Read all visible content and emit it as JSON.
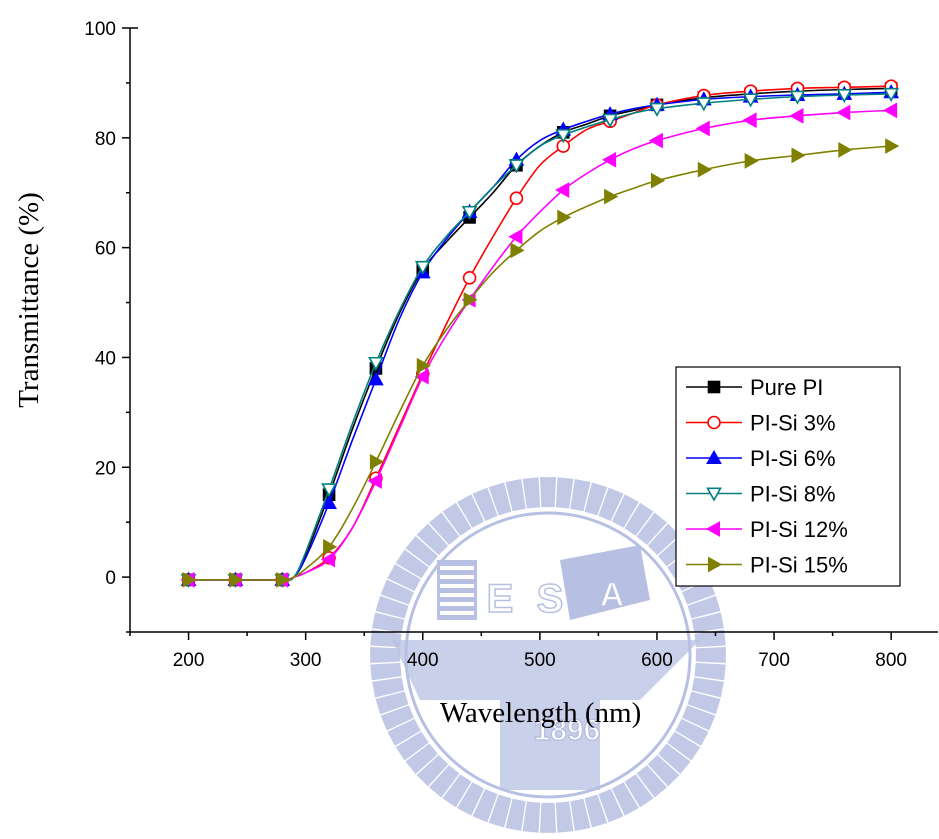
{
  "chart_data": {
    "type": "line",
    "xlabel": "Wavelength (nm)",
    "ylabel": "Transmittance (%)",
    "xlim": [
      150,
      840
    ],
    "ylim": [
      -10,
      100
    ],
    "xticks": [
      200,
      300,
      400,
      500,
      600,
      700,
      800
    ],
    "yticks": [
      0,
      20,
      40,
      60,
      80,
      100
    ],
    "grid": false,
    "legend_position": "right",
    "watermark_text": [
      "E",
      "S",
      "A",
      "1896"
    ],
    "series": [
      {
        "name": "Pure PI",
        "color": "#000000",
        "marker": "square-filled",
        "x": [
          200,
          240,
          280,
          290,
          300,
          320,
          340,
          360,
          380,
          400,
          420,
          440,
          460,
          480,
          500,
          520,
          540,
          560,
          580,
          600,
          640,
          680,
          720,
          760,
          800
        ],
        "y": [
          -0.5,
          -0.5,
          -0.5,
          0,
          4,
          15,
          27,
          38,
          48,
          56,
          61,
          65.5,
          70,
          75,
          78.5,
          81,
          82.5,
          84,
          85,
          86,
          87.3,
          88,
          88.5,
          88.8,
          89
        ]
      },
      {
        "name": "PI-Si 3%",
        "color": "#ff0000",
        "marker": "circle-open",
        "x": [
          200,
          240,
          280,
          290,
          300,
          320,
          340,
          360,
          380,
          400,
          420,
          440,
          460,
          480,
          500,
          520,
          540,
          560,
          580,
          600,
          640,
          680,
          720,
          760,
          800
        ],
        "y": [
          -0.5,
          -0.5,
          -0.5,
          0,
          0.8,
          3.5,
          9,
          18,
          27.5,
          37,
          46,
          54.5,
          62,
          69,
          75,
          78.5,
          81.5,
          83,
          84.5,
          86,
          87.7,
          88.5,
          89,
          89.2,
          89.4
        ]
      },
      {
        "name": "PI-Si 6%",
        "color": "#0000ff",
        "marker": "triangle-up-filled",
        "x": [
          200,
          240,
          280,
          290,
          300,
          320,
          340,
          360,
          380,
          400,
          420,
          440,
          460,
          480,
          500,
          520,
          540,
          560,
          580,
          600,
          640,
          680,
          720,
          760,
          800
        ],
        "y": [
          -0.5,
          -0.5,
          -0.5,
          0,
          3.5,
          13.5,
          25,
          36,
          47,
          55.5,
          61.5,
          66.5,
          71,
          76,
          79.5,
          81.5,
          83,
          84.3,
          85.3,
          86,
          87,
          87.5,
          87.8,
          88,
          88.3
        ]
      },
      {
        "name": "PI-Si 8%",
        "color": "#008080",
        "marker": "triangle-down-open",
        "x": [
          200,
          240,
          280,
          290,
          300,
          320,
          340,
          360,
          380,
          400,
          420,
          440,
          460,
          480,
          500,
          520,
          540,
          560,
          580,
          600,
          640,
          680,
          720,
          760,
          800
        ],
        "y": [
          -0.5,
          -0.5,
          -0.5,
          0,
          4.5,
          16,
          28,
          39,
          48.5,
          56.5,
          62,
          66.5,
          71,
          75,
          78.5,
          80.5,
          82,
          83.3,
          84.5,
          85.3,
          86.3,
          87,
          87.5,
          87.8,
          88
        ]
      },
      {
        "name": "PI-Si 12%",
        "color": "#ff00ff",
        "marker": "triangle-left-filled",
        "x": [
          200,
          240,
          280,
          290,
          300,
          320,
          340,
          360,
          380,
          400,
          420,
          440,
          460,
          480,
          500,
          520,
          540,
          560,
          580,
          600,
          640,
          680,
          720,
          760,
          800
        ],
        "y": [
          -0.5,
          -0.5,
          -0.5,
          0,
          0.8,
          3.2,
          9,
          17.5,
          27,
          36.5,
          44,
          50.5,
          56.5,
          62,
          66.5,
          70.5,
          73.5,
          76,
          78,
          79.5,
          81.7,
          83.2,
          84,
          84.6,
          85
        ]
      },
      {
        "name": "PI-Si 15%",
        "color": "#808000",
        "marker": "triangle-right-filled",
        "x": [
          200,
          240,
          280,
          290,
          300,
          320,
          340,
          360,
          380,
          400,
          420,
          440,
          460,
          480,
          500,
          520,
          540,
          560,
          580,
          600,
          640,
          680,
          720,
          760,
          800
        ],
        "y": [
          -0.5,
          -0.5,
          -0.5,
          0,
          1.5,
          5.5,
          12.5,
          21,
          30,
          38.5,
          45,
          50.5,
          55.5,
          59.5,
          63,
          65.5,
          67.5,
          69.3,
          70.8,
          72.2,
          74.2,
          75.8,
          76.8,
          77.8,
          78.5
        ]
      }
    ]
  }
}
